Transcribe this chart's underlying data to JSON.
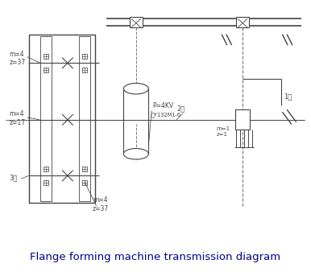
{
  "title": "Flange forming machine transmission diagram",
  "title_color": "#00008B",
  "title_fontsize": 9.5,
  "bg_color": "#ffffff",
  "line_color": "#444444",
  "dashed_color": "#777777",
  "fig_width": 3.86,
  "fig_height": 3.43,
  "labels": {
    "top_gear": "m=4\nz=37",
    "mid_gear": "m=4\nz=17",
    "bot_gear": "m=4\nz=37",
    "worm_gear": "m=1\nz=1",
    "motor_p": "P=4KV",
    "motor_model": "型Y132M1-6",
    "shaft1": "1轴",
    "shaft2": "2轴",
    "shaft3": "3轴"
  }
}
